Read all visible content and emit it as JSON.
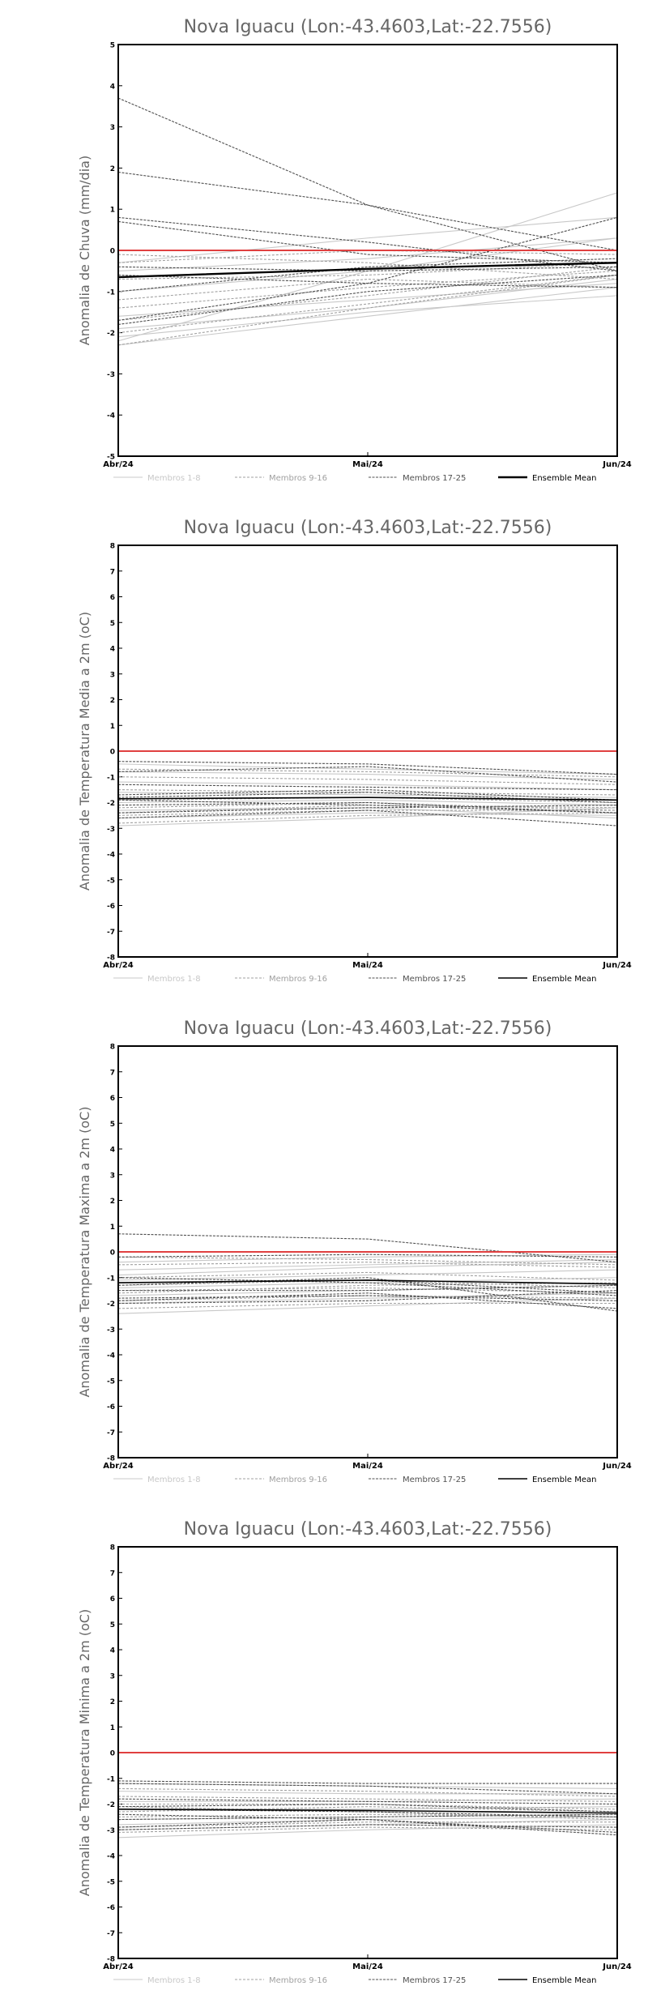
{
  "colors": {
    "zero_line": "#e04040",
    "members_1_8": "#c8c8c8",
    "members_9_16": "#a0a0a0",
    "members_17_25": "#505050",
    "ensemble_mean": "#000000",
    "title_text": "#666666",
    "axis": "#000000"
  },
  "legend": [
    "Membros 1-8",
    "Membros 9-16",
    "Membros 17-25",
    "Ensemble Mean"
  ],
  "chart_data": [
    {
      "type": "line",
      "title": "Nova Iguacu (Lon:-43.4603,Lat:-22.7556)",
      "ylabel": "Anomalia de Chuva (mm/dia)",
      "categories": [
        "Abr/24",
        "Mai/24",
        "Jun/24"
      ],
      "ylim": [
        -5,
        5
      ],
      "yticks": [
        "-5",
        "-4",
        "-3",
        "-2",
        "-1",
        "0",
        "1",
        "2",
        "3",
        "4",
        "5"
      ],
      "zero_line": 0,
      "series": [
        {
          "group": "Membros 1-8",
          "values": [
            -2.3,
            -1.6,
            -0.9
          ]
        },
        {
          "group": "Membros 1-8",
          "values": [
            -2.2,
            -0.5,
            1.4
          ]
        },
        {
          "group": "Membros 1-8",
          "values": [
            -2.1,
            -1.5,
            -1.1
          ]
        },
        {
          "group": "Membros 1-8",
          "values": [
            -1.9,
            -1.4,
            -0.7
          ]
        },
        {
          "group": "Membros 1-8",
          "values": [
            -1.0,
            -0.5,
            0.3
          ]
        },
        {
          "group": "Membros 1-8",
          "values": [
            -0.5,
            -0.2,
            0.3
          ]
        },
        {
          "group": "Membros 1-8",
          "values": [
            -0.3,
            0.3,
            0.8
          ]
        },
        {
          "group": "Membros 1-8",
          "values": [
            -1.6,
            -1.2,
            -0.8
          ]
        },
        {
          "group": "Membros 9-16",
          "values": [
            -2.0,
            -1.3,
            -0.6
          ]
        },
        {
          "group": "Membros 9-16",
          "values": [
            -1.7,
            -1.1,
            -0.4
          ]
        },
        {
          "group": "Membros 9-16",
          "values": [
            -1.2,
            -0.7,
            -0.9
          ]
        },
        {
          "group": "Membros 9-16",
          "values": [
            -0.3,
            0.0,
            -0.1
          ]
        },
        {
          "group": "Membros 9-16",
          "values": [
            -0.7,
            -0.6,
            -0.3
          ]
        },
        {
          "group": "Membros 9-16",
          "values": [
            -2.3,
            -1.4,
            -0.6
          ]
        },
        {
          "group": "Membros 9-16",
          "values": [
            -0.1,
            -0.3,
            -0.7
          ]
        },
        {
          "group": "Membros 9-16",
          "values": [
            -1.4,
            -0.9,
            -0.5
          ]
        },
        {
          "group": "Membros 17-25",
          "values": [
            3.7,
            1.1,
            -0.5
          ]
        },
        {
          "group": "Membros 17-25",
          "values": [
            1.9,
            1.1,
            0.0
          ]
        },
        {
          "group": "Membros 17-25",
          "values": [
            0.8,
            0.2,
            -0.5
          ]
        },
        {
          "group": "Membros 17-25",
          "values": [
            0.7,
            -0.1,
            -0.3
          ]
        },
        {
          "group": "Membros 17-25",
          "values": [
            -1.7,
            -0.8,
            0.8
          ]
        },
        {
          "group": "Membros 17-25",
          "values": [
            -1.0,
            -0.4,
            -0.2
          ]
        },
        {
          "group": "Membros 17-25",
          "values": [
            -0.4,
            -0.5,
            -0.4
          ]
        },
        {
          "group": "Membros 17-25",
          "values": [
            -1.8,
            -1.0,
            -0.6
          ]
        },
        {
          "group": "Membros 17-25",
          "values": [
            -0.6,
            -0.8,
            -0.9
          ]
        },
        {
          "group": "Ensemble Mean",
          "values": [
            -0.65,
            -0.45,
            -0.3
          ]
        }
      ]
    },
    {
      "type": "line",
      "title": "Nova Iguacu (Lon:-43.4603,Lat:-22.7556)",
      "ylabel": "Anomalia de Temperatura Media a 2m (oC)",
      "categories": [
        "Abr/24",
        "Mai/24",
        "Jun/24"
      ],
      "ylim": [
        -8,
        8
      ],
      "yticks": [
        "-8",
        "-7",
        "-6",
        "-5",
        "-4",
        "-3",
        "-2",
        "-1",
        "0",
        "1",
        "2",
        "3",
        "4",
        "5",
        "6",
        "7",
        "8"
      ],
      "zero_line": 0,
      "series": [
        {
          "group": "Membros 1-8",
          "values": [
            -2.9,
            -2.6,
            -2.2
          ]
        },
        {
          "group": "Membros 1-8",
          "values": [
            -2.6,
            -2.4,
            -2.5
          ]
        },
        {
          "group": "Membros 1-8",
          "values": [
            -2.3,
            -2.2,
            -2.6
          ]
        },
        {
          "group": "Membros 1-8",
          "values": [
            -2.0,
            -1.9,
            -2.1
          ]
        },
        {
          "group": "Membros 1-8",
          "values": [
            -1.6,
            -1.7,
            -1.8
          ]
        },
        {
          "group": "Membros 1-8",
          "values": [
            -1.2,
            -1.3,
            -1.5
          ]
        },
        {
          "group": "Membros 1-8",
          "values": [
            -0.8,
            -0.9,
            -1.1
          ]
        },
        {
          "group": "Membros 1-8",
          "values": [
            -0.5,
            -0.7,
            -0.9
          ]
        },
        {
          "group": "Membros 9-16",
          "values": [
            -2.8,
            -2.5,
            -2.4
          ]
        },
        {
          "group": "Membros 9-16",
          "values": [
            -2.5,
            -2.3,
            -2.3
          ]
        },
        {
          "group": "Membros 9-16",
          "values": [
            -2.2,
            -2.0,
            -2.3
          ]
        },
        {
          "group": "Membros 9-16",
          "values": [
            -1.9,
            -1.8,
            -2.0
          ]
        },
        {
          "group": "Membros 9-16",
          "values": [
            -1.5,
            -1.6,
            -1.7
          ]
        },
        {
          "group": "Membros 9-16",
          "values": [
            -1.0,
            -1.1,
            -1.3
          ]
        },
        {
          "group": "Membros 9-16",
          "values": [
            -0.7,
            -0.8,
            -1.0
          ]
        },
        {
          "group": "Membros 9-16",
          "values": [
            -2.4,
            -2.1,
            -2.2
          ]
        },
        {
          "group": "Membros 17-25",
          "values": [
            -2.6,
            -2.3,
            -2.9
          ]
        },
        {
          "group": "Membros 17-25",
          "values": [
            -2.4,
            -2.2,
            -2.1
          ]
        },
        {
          "group": "Membros 17-25",
          "values": [
            -2.1,
            -2.0,
            -2.4
          ]
        },
        {
          "group": "Membros 17-25",
          "values": [
            -1.9,
            -2.1,
            -2.4
          ]
        },
        {
          "group": "Membros 17-25",
          "values": [
            -1.8,
            -1.6,
            -2.0
          ]
        },
        {
          "group": "Membros 17-25",
          "values": [
            -1.7,
            -1.5,
            -1.9
          ]
        },
        {
          "group": "Membros 17-25",
          "values": [
            -1.3,
            -1.4,
            -1.5
          ]
        },
        {
          "group": "Membros 17-25",
          "values": [
            -0.4,
            -0.5,
            -0.9
          ]
        },
        {
          "group": "Membros 17-25",
          "values": [
            -0.8,
            -0.6,
            -1.2
          ]
        },
        {
          "group": "Ensemble Mean",
          "values": [
            -1.85,
            -1.8,
            -1.9
          ]
        }
      ]
    },
    {
      "type": "line",
      "title": "Nova Iguacu (Lon:-43.4603,Lat:-22.7556)",
      "ylabel": "Anomalia de Temperatura Maxima a 2m (oC)",
      "categories": [
        "Abr/24",
        "Mai/24",
        "Jun/24"
      ],
      "ylim": [
        -8,
        8
      ],
      "yticks": [
        "-8",
        "-7",
        "-6",
        "-5",
        "-4",
        "-3",
        "-2",
        "-1",
        "0",
        "1",
        "2",
        "3",
        "4",
        "5",
        "6",
        "7",
        "8"
      ],
      "zero_line": 0,
      "series": [
        {
          "group": "Membros 1-8",
          "values": [
            -2.4,
            -2.1,
            -1.8
          ]
        },
        {
          "group": "Membros 1-8",
          "values": [
            -2.0,
            -1.8,
            -1.6
          ]
        },
        {
          "group": "Membros 1-8",
          "values": [
            -1.7,
            -1.5,
            -1.3
          ]
        },
        {
          "group": "Membros 1-8",
          "values": [
            -1.4,
            -1.2,
            -1.0
          ]
        },
        {
          "group": "Membros 1-8",
          "values": [
            -1.1,
            -0.9,
            -0.7
          ]
        },
        {
          "group": "Membros 1-8",
          "values": [
            -0.7,
            -0.5,
            -0.3
          ]
        },
        {
          "group": "Membros 1-8",
          "values": [
            -0.4,
            -0.2,
            -0.1
          ]
        },
        {
          "group": "Membros 1-8",
          "values": [
            -0.9,
            -0.6,
            -0.4
          ]
        },
        {
          "group": "Membros 9-16",
          "values": [
            -2.2,
            -2.0,
            -2.0
          ]
        },
        {
          "group": "Membros 9-16",
          "values": [
            -1.9,
            -1.7,
            -1.8
          ]
        },
        {
          "group": "Membros 9-16",
          "values": [
            -1.5,
            -1.4,
            -1.6
          ]
        },
        {
          "group": "Membros 9-16",
          "values": [
            -1.3,
            -1.1,
            -1.4
          ]
        },
        {
          "group": "Membros 9-16",
          "values": [
            -1.0,
            -0.8,
            -1.1
          ]
        },
        {
          "group": "Membros 9-16",
          "values": [
            -0.5,
            -0.4,
            -0.6
          ]
        },
        {
          "group": "Membros 9-16",
          "values": [
            -0.2,
            -0.3,
            -0.5
          ]
        },
        {
          "group": "Membros 9-16",
          "values": [
            -1.6,
            -1.3,
            -1.2
          ]
        },
        {
          "group": "Membros 17-25",
          "values": [
            0.7,
            0.5,
            -0.4
          ]
        },
        {
          "group": "Membros 17-25",
          "values": [
            -0.2,
            -0.1,
            -0.2
          ]
        },
        {
          "group": "Membros 17-25",
          "values": [
            -1.2,
            -1.1,
            -1.6
          ]
        },
        {
          "group": "Membros 17-25",
          "values": [
            -1.3,
            -1.0,
            -2.3
          ]
        },
        {
          "group": "Membros 17-25",
          "values": [
            -1.9,
            -1.6,
            -2.2
          ]
        },
        {
          "group": "Membros 17-25",
          "values": [
            -1.8,
            -1.7,
            -1.9
          ]
        },
        {
          "group": "Membros 17-25",
          "values": [
            -1.0,
            -1.2,
            -1.7
          ]
        },
        {
          "group": "Membros 17-25",
          "values": [
            -1.5,
            -1.5,
            -1.3
          ]
        },
        {
          "group": "Membros 17-25",
          "values": [
            -2.0,
            -1.9,
            -1.5
          ]
        },
        {
          "group": "Ensemble Mean",
          "values": [
            -1.2,
            -1.1,
            -1.25
          ]
        }
      ]
    },
    {
      "type": "line",
      "title": "Nova Iguacu (Lon:-43.4603,Lat:-22.7556)",
      "ylabel": "Anomalia de Temperatura Minima a 2m (oC)",
      "categories": [
        "Abr/24",
        "Mai/24",
        "Jun/24"
      ],
      "ylim": [
        -8,
        8
      ],
      "yticks": [
        "-8",
        "-7",
        "-6",
        "-5",
        "-4",
        "-3",
        "-2",
        "-1",
        "0",
        "1",
        "2",
        "3",
        "4",
        "5",
        "6",
        "7",
        "8"
      ],
      "zero_line": 0,
      "series": [
        {
          "group": "Membros 1-8",
          "values": [
            -3.3,
            -3.0,
            -2.8
          ]
        },
        {
          "group": "Membros 1-8",
          "values": [
            -3.0,
            -2.8,
            -2.6
          ]
        },
        {
          "group": "Membros 1-8",
          "values": [
            -2.6,
            -2.5,
            -2.4
          ]
        },
        {
          "group": "Membros 1-8",
          "values": [
            -2.2,
            -2.2,
            -2.1
          ]
        },
        {
          "group": "Membros 1-8",
          "values": [
            -1.9,
            -1.9,
            -1.8
          ]
        },
        {
          "group": "Membros 1-8",
          "values": [
            -1.5,
            -1.6,
            -1.6
          ]
        },
        {
          "group": "Membros 1-8",
          "values": [
            -1.2,
            -1.3,
            -1.4
          ]
        },
        {
          "group": "Membros 1-8",
          "values": [
            -2.8,
            -2.6,
            -2.5
          ]
        },
        {
          "group": "Membros 9-16",
          "values": [
            -3.1,
            -2.9,
            -3.0
          ]
        },
        {
          "group": "Membros 9-16",
          "values": [
            -2.9,
            -2.7,
            -2.7
          ]
        },
        {
          "group": "Membros 9-16",
          "values": [
            -2.5,
            -2.4,
            -2.5
          ]
        },
        {
          "group": "Membros 9-16",
          "values": [
            -2.3,
            -2.1,
            -2.3
          ]
        },
        {
          "group": "Membros 9-16",
          "values": [
            -2.0,
            -2.0,
            -2.2
          ]
        },
        {
          "group": "Membros 9-16",
          "values": [
            -1.7,
            -1.8,
            -1.9
          ]
        },
        {
          "group": "Membros 9-16",
          "values": [
            -1.4,
            -1.5,
            -1.7
          ]
        },
        {
          "group": "Membros 9-16",
          "values": [
            -2.1,
            -2.3,
            -2.6
          ]
        },
        {
          "group": "Membros 17-25",
          "values": [
            -1.1,
            -1.2,
            -1.2
          ]
        },
        {
          "group": "Membros 17-25",
          "values": [
            -1.2,
            -1.3,
            -1.6
          ]
        },
        {
          "group": "Membros 17-25",
          "values": [
            -2.1,
            -2.0,
            -2.3
          ]
        },
        {
          "group": "Membros 17-25",
          "values": [
            -2.2,
            -2.3,
            -2.5
          ]
        },
        {
          "group": "Membros 17-25",
          "values": [
            -2.9,
            -2.6,
            -3.2
          ]
        },
        {
          "group": "Membros 17-25",
          "values": [
            -3.0,
            -2.8,
            -2.9
          ]
        },
        {
          "group": "Membros 17-25",
          "values": [
            -2.4,
            -2.6,
            -3.1
          ]
        },
        {
          "group": "Membros 17-25",
          "values": [
            -1.8,
            -1.9,
            -2.0
          ]
        },
        {
          "group": "Membros 17-25",
          "values": [
            -2.6,
            -2.5,
            -2.4
          ]
        },
        {
          "group": "Ensemble Mean",
          "values": [
            -2.2,
            -2.25,
            -2.35
          ]
        }
      ]
    }
  ]
}
